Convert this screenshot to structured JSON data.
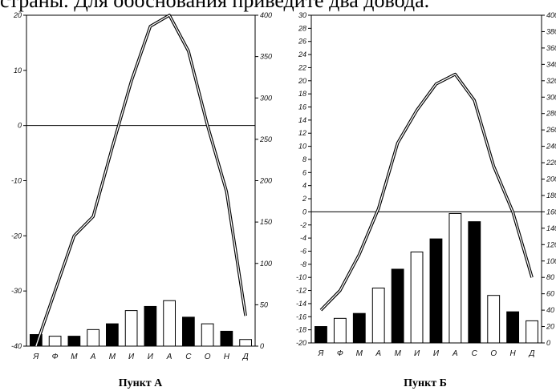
{
  "header_text": "страны. Для обоснования приведите два довода.",
  "colors": {
    "axis": "#000000",
    "bar_dark": "#000000",
    "bar_light": "#ffffff"
  },
  "chart_data": [
    {
      "type": "bar+line",
      "caption": "Пункт А",
      "categories": [
        "Я",
        "Ф",
        "М",
        "А",
        "М",
        "И",
        "И",
        "А",
        "С",
        "О",
        "Н",
        "Д"
      ],
      "temperature_axis": {
        "ylim": [
          -40,
          20
        ],
        "ticks": [
          20,
          10,
          0,
          -10,
          -20,
          -30,
          -40
        ]
      },
      "precipitation_axis": {
        "ylim": [
          0,
          400
        ],
        "ticks": [
          400,
          350,
          300,
          250,
          200,
          150,
          100,
          50,
          0
        ]
      },
      "temperature": [
        -40,
        -30,
        -20,
        -16.5,
        -4,
        8,
        18,
        20,
        13.5,
        0,
        -12,
        -34.5
      ],
      "precipitation": [
        14,
        12,
        12,
        20,
        27,
        43,
        48,
        55,
        35,
        27,
        18,
        8
      ],
      "bar_fill": [
        "dark",
        "light",
        "dark",
        "light",
        "dark",
        "light",
        "dark",
        "light",
        "dark",
        "light",
        "dark",
        "light"
      ],
      "zero_line": 0
    },
    {
      "type": "bar+line",
      "caption": "Пункт Б",
      "categories": [
        "Я",
        "Ф",
        "М",
        "А",
        "М",
        "И",
        "И",
        "А",
        "С",
        "О",
        "Н",
        "Д"
      ],
      "temperature_axis": {
        "ylim": [
          -20,
          30
        ],
        "ticks": [
          30,
          28,
          26,
          24,
          22,
          20,
          18,
          16,
          14,
          12,
          10,
          8,
          6,
          4,
          2,
          0,
          -2,
          -4,
          -6,
          -8,
          -10,
          -12,
          -14,
          -16,
          -18,
          -20
        ]
      },
      "precipitation_axis": {
        "ylim": [
          0,
          400
        ],
        "ticks": [
          400,
          380,
          360,
          340,
          320,
          300,
          280,
          260,
          240,
          220,
          200,
          180,
          160,
          140,
          120,
          100,
          80,
          60,
          40,
          20,
          0
        ]
      },
      "temperature": [
        -15,
        -12,
        -6.5,
        0.5,
        10.5,
        15.5,
        19.5,
        21,
        17,
        7,
        0,
        -10
      ],
      "precipitation": [
        20,
        30,
        36,
        67,
        90,
        111,
        127,
        158,
        148,
        58,
        38,
        27
      ],
      "bar_fill": [
        "dark",
        "light",
        "dark",
        "light",
        "dark",
        "light",
        "dark",
        "light",
        "dark",
        "light",
        "dark",
        "light"
      ],
      "zero_line": 0
    }
  ]
}
